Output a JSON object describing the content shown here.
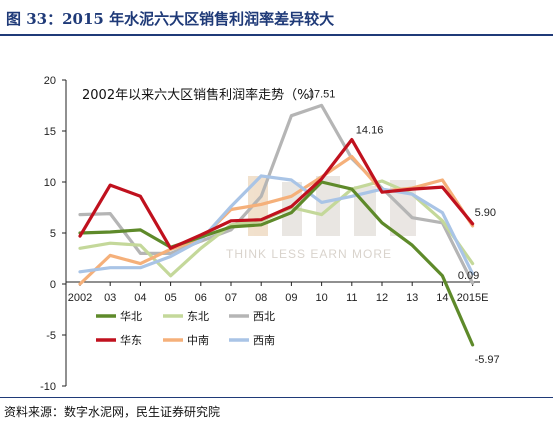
{
  "figure": {
    "title": "图 33：2015 年水泥六大区销售利润率差异较大",
    "source": "资料来源：数字水泥网，民生证券研究院"
  },
  "watermark": {
    "text": "THINK LESS EARN MORE"
  },
  "chart_data": {
    "type": "line",
    "title": "2002年以来六大区销售利润率走势（%）",
    "xlabel": "",
    "ylabel": "",
    "categories": [
      "2002",
      "03",
      "04",
      "05",
      "06",
      "07",
      "08",
      "09",
      "10",
      "11",
      "12",
      "13",
      "14",
      "2015E"
    ],
    "yticks": [
      20,
      15,
      10,
      5,
      0,
      -5,
      -10
    ],
    "ylim": [
      -10,
      20
    ],
    "grid": false,
    "legend_position": "bottom-left",
    "series": [
      {
        "name": "华北",
        "color": "#5e8a2a",
        "values": [
          5.0,
          5.1,
          5.3,
          3.6,
          4.6,
          5.6,
          5.8,
          7.0,
          10.0,
          9.3,
          6.0,
          3.8,
          0.8,
          -5.97
        ]
      },
      {
        "name": "东北",
        "color": "#c4d89a",
        "values": [
          3.5,
          4.0,
          3.8,
          0.8,
          3.5,
          5.8,
          6.2,
          7.5,
          6.8,
          9.3,
          10.1,
          8.8,
          6.2,
          2.0
        ]
      },
      {
        "name": "西北",
        "color": "#b5b5b5",
        "values": [
          6.8,
          6.9,
          3.0,
          3.0,
          4.2,
          5.3,
          8.6,
          16.5,
          17.51,
          12.3,
          9.4,
          6.5,
          6.0,
          0.09
        ]
      },
      {
        "name": "华东",
        "color": "#c0111e",
        "values": [
          4.7,
          9.7,
          8.6,
          3.5,
          4.8,
          6.2,
          6.3,
          7.6,
          10.3,
          14.16,
          9.0,
          9.3,
          9.5,
          5.9
        ]
      },
      {
        "name": "中南",
        "color": "#f5b07a",
        "values": [
          0.0,
          2.8,
          2.0,
          3.4,
          4.4,
          7.3,
          7.8,
          8.6,
          10.5,
          12.5,
          9.1,
          9.4,
          10.2,
          5.7
        ]
      },
      {
        "name": "西南",
        "color": "#a9c4e6",
        "values": [
          1.2,
          1.6,
          1.6,
          2.7,
          4.3,
          7.6,
          10.6,
          10.2,
          8.0,
          8.6,
          9.3,
          8.8,
          7.0,
          1.0
        ]
      }
    ],
    "data_labels": [
      {
        "series": "西北",
        "index": 8,
        "text": "17.51"
      },
      {
        "series": "华东",
        "index": 9,
        "text": "14.16"
      },
      {
        "series": "华东",
        "index": 13,
        "text": "5.90"
      },
      {
        "series": "西北",
        "index": 13,
        "text": "0.09"
      },
      {
        "series": "华北",
        "index": 13,
        "text": "-5.97"
      }
    ]
  }
}
